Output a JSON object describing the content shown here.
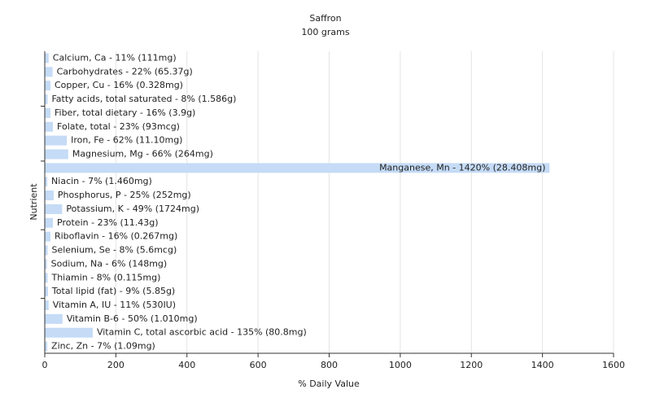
{
  "chart_data": {
    "type": "bar",
    "orientation": "horizontal",
    "title": "Saffron",
    "subtitle": "100 grams",
    "x_label": "% Daily Value",
    "y_label": "Nutrient",
    "values": [
      11,
      22,
      16,
      8,
      16,
      23,
      62,
      66,
      1420,
      7,
      25,
      49,
      23,
      16,
      8,
      6,
      8,
      9,
      11,
      50,
      135,
      7
    ],
    "value_labels": [
      "Calcium, Ca - 11% (111mg)",
      "Carbohydrates - 22% (65.37g)",
      "Copper, Cu - 16% (0.328mg)",
      "Fatty acids, total saturated - 8% (1.586g)",
      "Fiber, total dietary - 16% (3.9g)",
      "Folate, total - 23% (93mcg)",
      "Iron, Fe - 62% (11.10mg)",
      "Magnesium, Mg - 66% (264mg)",
      "Manganese, Mn - 1420% (28.408mg)",
      "Niacin - 7% (1.460mg)",
      "Phosphorus, P - 25% (252mg)",
      "Potassium, K - 49% (1724mg)",
      "Protein - 23% (11.43g)",
      "Riboflavin - 16% (0.267mg)",
      "Selenium, Se - 8% (5.6mcg)",
      "Sodium, Na - 6% (148mg)",
      "Thiamin - 8% (0.115mg)",
      "Total lipid (fat) - 9% (5.85g)",
      "Vitamin A, IU - 11% (530IU)",
      "Vitamin B-6 - 50% (1.010mg)",
      "Vitamin C, total ascorbic acid - 135% (80.8mg)",
      "Zinc, Zn - 7% (1.09mg)"
    ],
    "color": "#c5dbf6",
    "xlim": [
      0,
      1600
    ],
    "xticks": [
      0,
      200,
      400,
      600,
      800,
      1000,
      1200,
      1400,
      1600
    ],
    "grid": true
  }
}
